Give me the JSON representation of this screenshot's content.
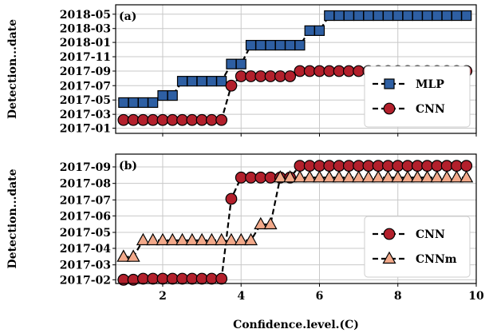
{
  "chart_data": [
    {
      "type": "line",
      "panel_label": "(a)",
      "ylabel": "Detection...date",
      "xlabel": "",
      "xlim": [
        0.8,
        10.0
      ],
      "x_ticks": [
        2,
        4,
        6,
        8,
        10
      ],
      "y_ticks": [
        "2017-01",
        "2017-03",
        "2017-05",
        "2017-07",
        "2017-09",
        "2017-11",
        "2018-01",
        "2018-03",
        "2018-05"
      ],
      "ylim": [
        "2016-12-10",
        "2018-06-10"
      ],
      "grid": true,
      "legend_position": "lower-right",
      "series": [
        {
          "name": "MLP",
          "color": "#2e5fa3",
          "marker": "square",
          "points": [
            [
              1.0,
              "2017-04-20"
            ],
            [
              1.25,
              "2017-04-20"
            ],
            [
              1.5,
              "2017-04-20"
            ],
            [
              1.75,
              "2017-04-20"
            ],
            [
              2.0,
              "2017-05-20"
            ],
            [
              2.25,
              "2017-05-20"
            ],
            [
              2.5,
              "2017-07-20"
            ],
            [
              2.75,
              "2017-07-20"
            ],
            [
              3.0,
              "2017-07-20"
            ],
            [
              3.25,
              "2017-07-20"
            ],
            [
              3.5,
              "2017-07-20"
            ],
            [
              3.75,
              "2017-10-01"
            ],
            [
              4.0,
              "2017-10-01"
            ],
            [
              4.25,
              "2017-12-20"
            ],
            [
              4.5,
              "2017-12-20"
            ],
            [
              4.75,
              "2017-12-20"
            ],
            [
              5.0,
              "2017-12-20"
            ],
            [
              5.25,
              "2017-12-20"
            ],
            [
              5.5,
              "2017-12-20"
            ],
            [
              5.75,
              "2018-02-20"
            ],
            [
              6.0,
              "2018-02-20"
            ],
            [
              6.25,
              "2018-04-25"
            ],
            [
              6.5,
              "2018-04-25"
            ],
            [
              6.75,
              "2018-04-25"
            ],
            [
              7.0,
              "2018-04-25"
            ],
            [
              7.25,
              "2018-04-25"
            ],
            [
              7.5,
              "2018-04-25"
            ],
            [
              7.75,
              "2018-04-25"
            ],
            [
              8.0,
              "2018-04-25"
            ],
            [
              8.25,
              "2018-04-25"
            ],
            [
              8.5,
              "2018-04-25"
            ],
            [
              8.75,
              "2018-04-25"
            ],
            [
              9.0,
              "2018-04-25"
            ],
            [
              9.25,
              "2018-04-25"
            ],
            [
              9.5,
              "2018-04-25"
            ],
            [
              9.75,
              "2018-04-25"
            ]
          ]
        },
        {
          "name": "CNN",
          "color": "#b3202c",
          "marker": "circle",
          "points": [
            [
              1.0,
              "2017-02-05"
            ],
            [
              1.25,
              "2017-02-05"
            ],
            [
              1.5,
              "2017-02-05"
            ],
            [
              1.75,
              "2017-02-05"
            ],
            [
              2.0,
              "2017-02-05"
            ],
            [
              2.25,
              "2017-02-05"
            ],
            [
              2.5,
              "2017-02-05"
            ],
            [
              2.75,
              "2017-02-05"
            ],
            [
              3.0,
              "2017-02-05"
            ],
            [
              3.25,
              "2017-02-05"
            ],
            [
              3.5,
              "2017-02-05"
            ],
            [
              3.75,
              "2017-07-01"
            ],
            [
              4.0,
              "2017-08-10"
            ],
            [
              4.25,
              "2017-08-10"
            ],
            [
              4.5,
              "2017-08-10"
            ],
            [
              4.75,
              "2017-08-10"
            ],
            [
              5.0,
              "2017-08-10"
            ],
            [
              5.25,
              "2017-08-10"
            ],
            [
              5.5,
              "2017-09-01"
            ],
            [
              5.75,
              "2017-09-01"
            ],
            [
              6.0,
              "2017-09-01"
            ],
            [
              6.25,
              "2017-09-01"
            ],
            [
              6.5,
              "2017-09-01"
            ],
            [
              6.75,
              "2017-09-01"
            ],
            [
              7.0,
              "2017-09-01"
            ],
            [
              7.25,
              "2017-09-01"
            ],
            [
              7.5,
              "2017-09-01"
            ],
            [
              7.75,
              "2017-09-01"
            ],
            [
              8.0,
              "2017-09-01"
            ],
            [
              8.25,
              "2017-09-01"
            ],
            [
              8.5,
              "2017-09-01"
            ],
            [
              8.75,
              "2017-09-01"
            ],
            [
              9.0,
              "2017-09-01"
            ],
            [
              9.25,
              "2017-09-01"
            ],
            [
              9.5,
              "2017-09-01"
            ],
            [
              9.75,
              "2017-09-01"
            ]
          ]
        }
      ]
    },
    {
      "type": "line",
      "panel_label": "(b)",
      "ylabel": "Detection...date",
      "xlabel": "Confidence.level.(C)",
      "xlim": [
        0.8,
        10.0
      ],
      "x_ticks": [
        2,
        4,
        6,
        8,
        10
      ],
      "y_ticks": [
        "2017-02",
        "2017-03",
        "2017-04",
        "2017-05",
        "2017-06",
        "2017-07",
        "2017-08",
        "2017-09"
      ],
      "ylim": [
        "2017-01-25",
        "2017-09-25"
      ],
      "grid": true,
      "legend_position": "lower-right",
      "series": [
        {
          "name": "CNN",
          "color": "#b3202c",
          "marker": "circle",
          "points": [
            [
              1.0,
              "2017-02-01"
            ],
            [
              1.25,
              "2017-02-01"
            ],
            [
              1.5,
              "2017-02-03"
            ],
            [
              1.75,
              "2017-02-03"
            ],
            [
              2.0,
              "2017-02-03"
            ],
            [
              2.25,
              "2017-02-03"
            ],
            [
              2.5,
              "2017-02-03"
            ],
            [
              2.75,
              "2017-02-03"
            ],
            [
              3.0,
              "2017-02-03"
            ],
            [
              3.25,
              "2017-02-03"
            ],
            [
              3.5,
              "2017-02-03"
            ],
            [
              3.75,
              "2017-07-03"
            ],
            [
              4.0,
              "2017-08-12"
            ],
            [
              4.25,
              "2017-08-12"
            ],
            [
              4.5,
              "2017-08-12"
            ],
            [
              4.75,
              "2017-08-12"
            ],
            [
              5.0,
              "2017-08-12"
            ],
            [
              5.25,
              "2017-08-12"
            ],
            [
              5.5,
              "2017-09-03"
            ],
            [
              5.75,
              "2017-09-03"
            ],
            [
              6.0,
              "2017-09-03"
            ],
            [
              6.25,
              "2017-09-03"
            ],
            [
              6.5,
              "2017-09-03"
            ],
            [
              6.75,
              "2017-09-03"
            ],
            [
              7.0,
              "2017-09-03"
            ],
            [
              7.25,
              "2017-09-03"
            ],
            [
              7.5,
              "2017-09-03"
            ],
            [
              7.75,
              "2017-09-03"
            ],
            [
              8.0,
              "2017-09-03"
            ],
            [
              8.25,
              "2017-09-03"
            ],
            [
              8.5,
              "2017-09-03"
            ],
            [
              8.75,
              "2017-09-03"
            ],
            [
              9.0,
              "2017-09-03"
            ],
            [
              9.25,
              "2017-09-03"
            ],
            [
              9.5,
              "2017-09-03"
            ],
            [
              9.75,
              "2017-09-03"
            ]
          ]
        },
        {
          "name": "CNNm",
          "color": "#f2a98a",
          "marker": "triangle",
          "points": [
            [
              1.0,
              "2017-03-16"
            ],
            [
              1.25,
              "2017-03-16"
            ],
            [
              1.5,
              "2017-04-16"
            ],
            [
              1.75,
              "2017-04-16"
            ],
            [
              2.0,
              "2017-04-16"
            ],
            [
              2.25,
              "2017-04-16"
            ],
            [
              2.5,
              "2017-04-16"
            ],
            [
              2.75,
              "2017-04-16"
            ],
            [
              3.0,
              "2017-04-16"
            ],
            [
              3.25,
              "2017-04-16"
            ],
            [
              3.5,
              "2017-04-16"
            ],
            [
              3.75,
              "2017-04-16"
            ],
            [
              4.0,
              "2017-04-16"
            ],
            [
              4.25,
              "2017-04-16"
            ],
            [
              4.5,
              "2017-05-16"
            ],
            [
              4.75,
              "2017-05-16"
            ],
            [
              5.0,
              "2017-08-12"
            ],
            [
              5.25,
              "2017-08-12"
            ],
            [
              5.5,
              "2017-08-12"
            ],
            [
              5.75,
              "2017-08-12"
            ],
            [
              6.0,
              "2017-08-12"
            ],
            [
              6.25,
              "2017-08-12"
            ],
            [
              6.5,
              "2017-08-12"
            ],
            [
              6.75,
              "2017-08-12"
            ],
            [
              7.0,
              "2017-08-12"
            ],
            [
              7.25,
              "2017-08-12"
            ],
            [
              7.5,
              "2017-08-12"
            ],
            [
              7.75,
              "2017-08-12"
            ],
            [
              8.0,
              "2017-08-12"
            ],
            [
              8.25,
              "2017-08-12"
            ],
            [
              8.5,
              "2017-08-12"
            ],
            [
              8.75,
              "2017-08-12"
            ],
            [
              9.0,
              "2017-08-12"
            ],
            [
              9.25,
              "2017-08-12"
            ],
            [
              9.5,
              "2017-08-12"
            ],
            [
              9.75,
              "2017-08-12"
            ]
          ]
        }
      ]
    }
  ]
}
